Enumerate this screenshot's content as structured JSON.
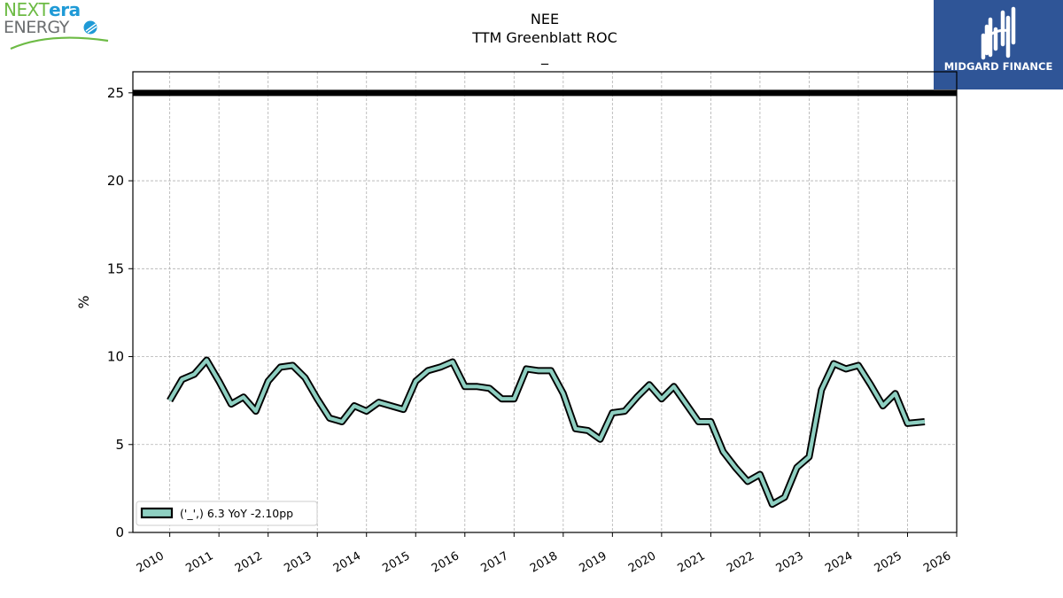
{
  "header": {
    "logo_left": {
      "part1": "NEXT",
      "part2": "era",
      "part3": "ENERGY"
    },
    "logo_right": {
      "name": "MIDGARD FINANCE"
    }
  },
  "colors": {
    "series_fill": "#8ecfc1",
    "series_edge": "#000000",
    "nextera_green": "#6dbb45",
    "nextera_blue": "#1f9ad6",
    "nextera_gray": "#6b6e70",
    "midgard_blue": "#2f5597"
  },
  "chart_data": {
    "type": "line",
    "title": [
      "NEE",
      "TTM Greenblatt ROC",
      "_"
    ],
    "xlabel": "",
    "ylabel": "%",
    "ylim": [
      0,
      26.2
    ],
    "xlim": [
      2009.25,
      2026
    ],
    "yticks": [
      0,
      5,
      10,
      15,
      20,
      25
    ],
    "xticks": [
      2010,
      2011,
      2012,
      2013,
      2014,
      2015,
      2016,
      2017,
      2018,
      2019,
      2020,
      2021,
      2022,
      2023,
      2024,
      2025,
      2026
    ],
    "grid": true,
    "legend_position": "lower-left",
    "reference_line": {
      "y": 25
    },
    "series": [
      {
        "name": "('_',) 6.3 YoY -2.10pp",
        "x": [
          2010.0,
          2010.25,
          2010.5,
          2010.75,
          2011.0,
          2011.25,
          2011.5,
          2011.75,
          2012.0,
          2012.25,
          2012.5,
          2012.75,
          2013.0,
          2013.25,
          2013.5,
          2013.75,
          2014.0,
          2014.25,
          2014.5,
          2014.75,
          2015.0,
          2015.25,
          2015.5,
          2015.75,
          2016.0,
          2016.25,
          2016.5,
          2016.75,
          2017.0,
          2017.25,
          2017.5,
          2017.75,
          2018.0,
          2018.25,
          2018.5,
          2018.75,
          2019.0,
          2019.25,
          2019.5,
          2019.75,
          2020.0,
          2020.25,
          2020.5,
          2020.75,
          2021.0,
          2021.25,
          2021.5,
          2021.75,
          2022.0,
          2022.25,
          2022.5,
          2022.75,
          2023.0,
          2023.25,
          2023.5,
          2023.75,
          2024.0,
          2024.25,
          2024.5,
          2024.75,
          2025.0,
          2025.35
        ],
        "values": [
          7.5,
          8.7,
          9.0,
          9.8,
          8.6,
          7.3,
          7.7,
          6.9,
          8.6,
          9.4,
          9.5,
          8.8,
          7.6,
          6.5,
          6.3,
          7.2,
          6.9,
          7.4,
          7.2,
          7.0,
          8.6,
          9.2,
          9.4,
          9.7,
          8.3,
          8.3,
          8.2,
          7.6,
          7.6,
          9.3,
          9.2,
          9.2,
          7.9,
          5.9,
          5.8,
          5.3,
          6.8,
          6.9,
          7.7,
          8.4,
          7.6,
          8.3,
          7.3,
          6.3,
          6.3,
          4.6,
          3.7,
          2.9,
          3.3,
          1.6,
          2.0,
          3.7,
          4.3,
          8.1,
          9.6,
          9.3,
          9.5,
          8.4,
          7.2,
          7.9,
          6.2,
          6.3
        ]
      }
    ]
  }
}
